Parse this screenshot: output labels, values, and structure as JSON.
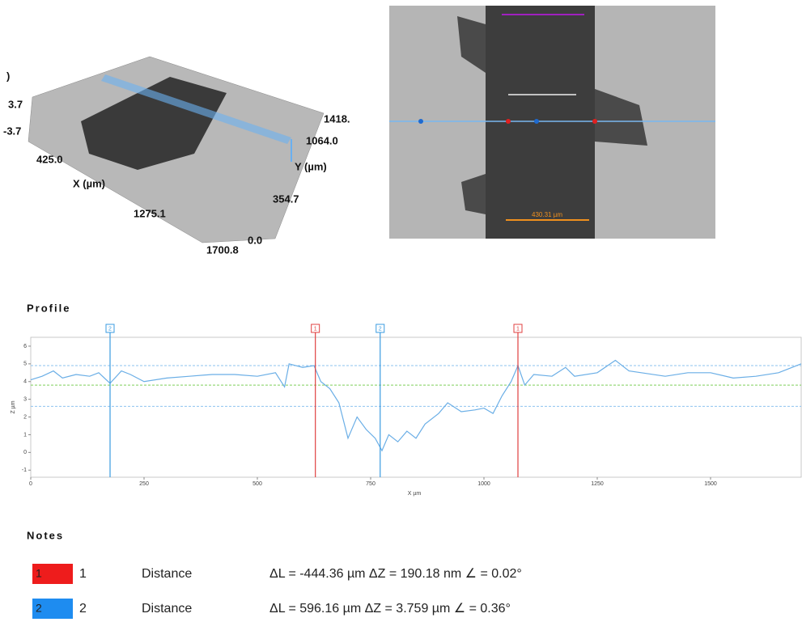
{
  "surface_3d": {
    "labels": [
      ")",
      "3.7",
      "-3.7",
      "425.0",
      "X (µm)",
      "1275.1",
      "1700.8",
      "1418.",
      "1064.0",
      "Y (µm)",
      "354.7",
      "0.0"
    ]
  },
  "micrograph": {
    "labels": [
      "430.31 µm"
    ]
  },
  "chart_data": {
    "type": "line",
    "title": "Profile",
    "x_label": "X µm",
    "y_label": "Z µm",
    "color": "#6aaee6",
    "x": [
      0,
      25,
      50,
      70,
      100,
      130,
      150,
      175,
      200,
      220,
      250,
      300,
      350,
      400,
      450,
      500,
      540,
      560,
      570,
      600,
      625,
      640,
      660,
      680,
      700,
      720,
      740,
      760,
      775,
      790,
      810,
      830,
      850,
      870,
      900,
      920,
      950,
      980,
      1000,
      1020,
      1040,
      1060,
      1075,
      1090,
      1110,
      1150,
      1180,
      1200,
      1250,
      1290,
      1320,
      1400,
      1450,
      1500,
      1550,
      1600,
      1650,
      1700
    ],
    "values": [
      4.1,
      4.3,
      4.6,
      4.2,
      4.4,
      4.3,
      4.5,
      3.9,
      4.6,
      4.4,
      4.0,
      4.2,
      4.3,
      4.4,
      4.4,
      4.3,
      4.5,
      3.7,
      5.0,
      4.8,
      4.9,
      4.0,
      3.6,
      2.8,
      0.8,
      2.0,
      1.3,
      0.8,
      0.1,
      1.0,
      0.6,
      1.2,
      0.8,
      1.6,
      2.2,
      2.8,
      2.3,
      2.4,
      2.5,
      2.2,
      3.2,
      4.0,
      4.9,
      3.8,
      4.4,
      4.3,
      4.8,
      4.3,
      4.5,
      5.2,
      4.6,
      4.3,
      4.5,
      4.5,
      4.2,
      4.3,
      4.5,
      5.0
    ],
    "xlim": [
      0,
      1700
    ],
    "ylim": [
      -1.4,
      6.5
    ],
    "xticks": [
      0,
      250,
      500,
      750,
      1000,
      1250,
      1500
    ],
    "yticks": [
      -1,
      0,
      1,
      2,
      3,
      4,
      5,
      6
    ],
    "reference_lines": [
      {
        "value": 4.9,
        "color": "#8ec3ef"
      },
      {
        "value": 3.8,
        "color": "#7fcf5a"
      },
      {
        "value": 2.6,
        "color": "#8ec3ef"
      }
    ],
    "cursors": [
      {
        "label": "2",
        "x": 175,
        "color": "#3a9be0"
      },
      {
        "label": "1",
        "x": 628,
        "color": "#e04040"
      },
      {
        "label": "2",
        "x": 771,
        "color": "#3a9be0"
      },
      {
        "label": "1",
        "x": 1075,
        "color": "#e04040"
      }
    ]
  },
  "notes": {
    "title": "Notes",
    "rows": [
      {
        "marker": "1",
        "id": "1",
        "type": "Distance",
        "measurement": "ΔL = -444.36 µm ΔZ = 190.18 nm ∠ = 0.02°",
        "color": "#ee1c1c"
      },
      {
        "marker": "2",
        "id": "2",
        "type": "Distance",
        "measurement": "ΔL = 596.16 µm ΔZ = 3.759 µm ∠ = 0.36°",
        "color": "#1e8cf0"
      }
    ]
  }
}
